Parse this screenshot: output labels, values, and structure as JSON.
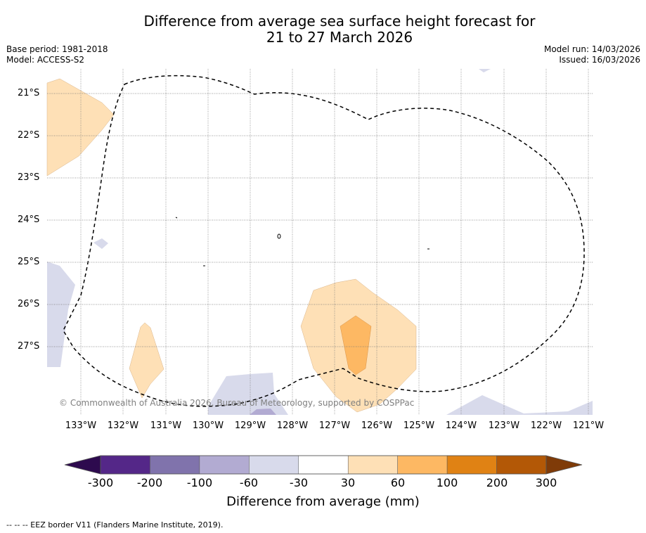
{
  "title_line1": "Difference from average sea surface height forecast for",
  "title_line2": "21 to 27 March 2026",
  "base_period": "Base period: 1981-2018",
  "model": "Model: ACCESS-S2",
  "model_run": "Model run: 14/03/2026",
  "issued": "Issued: 16/03/2026",
  "lat_labels": [
    "21°S",
    "22°S",
    "23°S",
    "24°S",
    "25°S",
    "26°S",
    "27°S"
  ],
  "lon_labels": [
    "133°W",
    "132°W",
    "131°W",
    "130°W",
    "129°W",
    "128°W",
    "127°W",
    "126°W",
    "125°W",
    "124°W",
    "123°W",
    "122°W",
    "121°W"
  ],
  "copyright": "© Commonwealth of Australia 2026, Bureau of Meteorology, supported by COSPPac",
  "colorbar": {
    "ticks": [
      "-300",
      "-200",
      "-100",
      "-60",
      "-30",
      "30",
      "60",
      "100",
      "200",
      "300"
    ],
    "colors": [
      "#2d0a4e",
      "#542788",
      "#8073ac",
      "#b2abd2",
      "#d8daeb",
      "#ffffff",
      "#fee0b6",
      "#fdb863",
      "#e08214",
      "#b35806",
      "#7f3b08"
    ],
    "title": "Difference from average (mm)"
  },
  "footer": "--  --  -- EEZ border V11 (Flanders Marine Institute, 2019)."
}
